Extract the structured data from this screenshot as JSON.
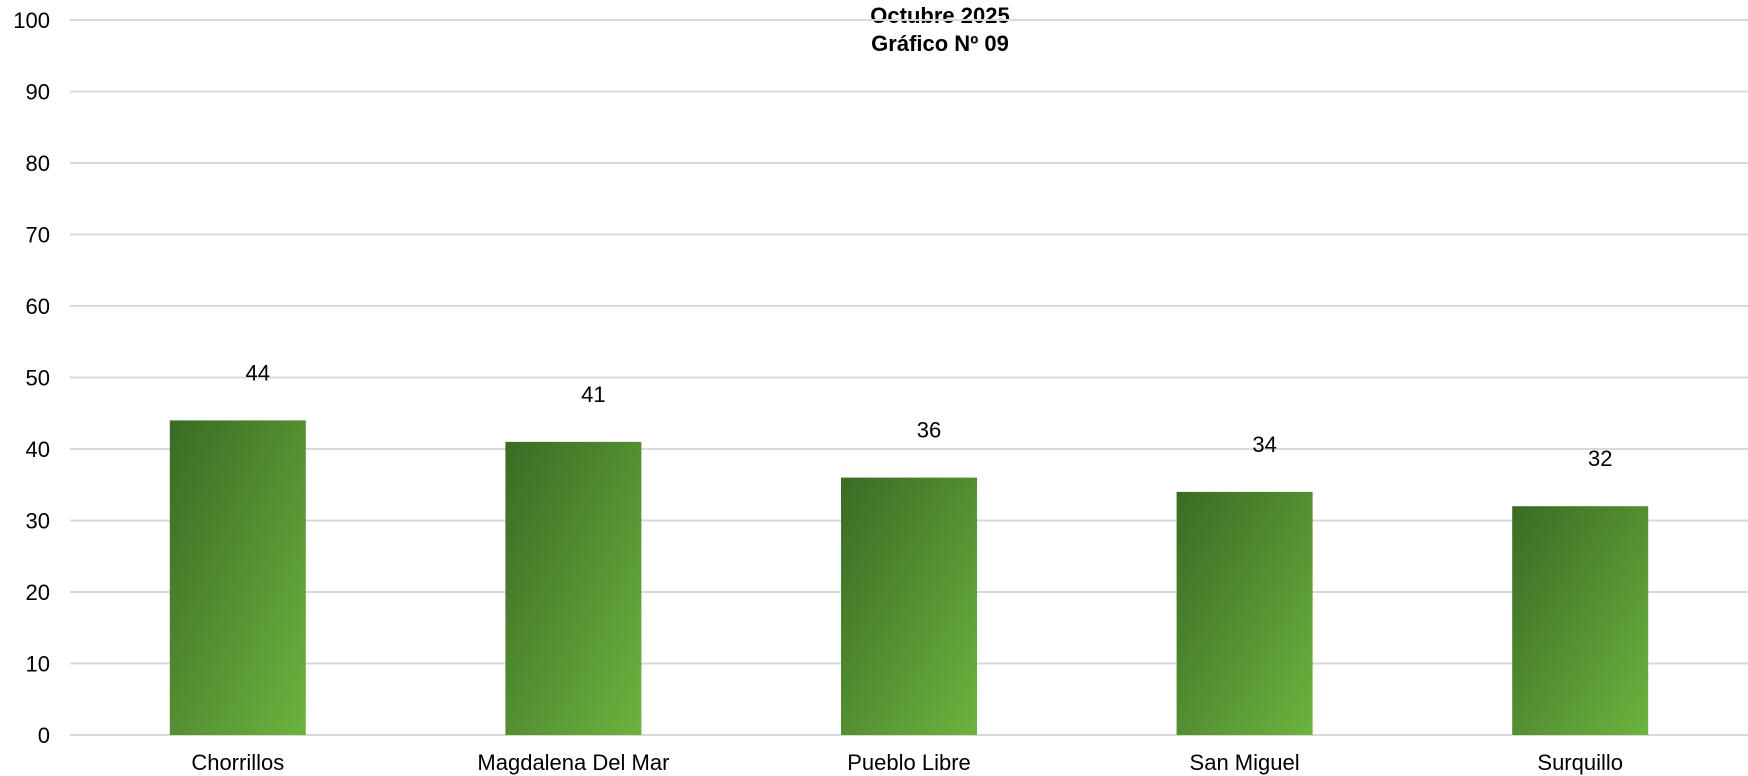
{
  "chart_data": {
    "type": "bar",
    "title_lines": [
      "Octubre 2025",
      "Gráfico Nº 09"
    ],
    "categories": [
      "Chorrillos",
      "Magdalena Del Mar",
      "Pueblo Libre",
      "San Miguel",
      "Surquillo"
    ],
    "values": [
      44,
      41,
      36,
      34,
      32
    ],
    "data_labels": [
      "44",
      "41",
      "36",
      "34",
      "32"
    ],
    "ylim": [
      0,
      100
    ],
    "yticks": [
      0,
      10,
      20,
      30,
      40,
      50,
      60,
      70,
      80,
      90,
      100
    ],
    "grid": true,
    "legend": "none",
    "colors": {
      "bar_dark": "#3a6b24",
      "bar_light": "#6db33f",
      "grid": "#d9d9d9"
    }
  }
}
